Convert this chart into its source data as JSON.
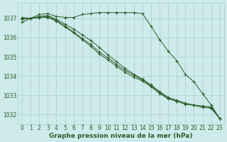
{
  "x": [
    0,
    1,
    2,
    3,
    4,
    5,
    6,
    7,
    8,
    9,
    10,
    11,
    12,
    13,
    14,
    15,
    16,
    17,
    18,
    19,
    20,
    21,
    22,
    23
  ],
  "line1": [
    1036.8,
    1037.0,
    1037.2,
    1037.25,
    1037.1,
    1037.05,
    1037.05,
    1037.2,
    1037.25,
    1037.3,
    1037.3,
    1037.3,
    1037.3,
    1037.3,
    1037.25,
    1036.6,
    1035.9,
    1035.3,
    1034.8,
    1034.1,
    1033.7,
    1033.1,
    1032.5,
    1031.8
  ],
  "line2": [
    1036.95,
    1037.0,
    1037.1,
    1037.15,
    1036.95,
    1036.7,
    1036.45,
    1036.15,
    1035.85,
    1035.5,
    1035.1,
    1034.75,
    1034.4,
    1034.1,
    1033.85,
    1033.55,
    1033.2,
    1032.9,
    1032.75,
    1032.6,
    1032.5,
    1032.45,
    1032.4,
    1031.8
  ],
  "line3": [
    1037.0,
    1037.0,
    1037.05,
    1037.1,
    1036.9,
    1036.6,
    1036.3,
    1035.95,
    1035.65,
    1035.25,
    1034.95,
    1034.6,
    1034.3,
    1034.05,
    1033.8,
    1033.5,
    1033.15,
    1032.85,
    1032.7,
    1032.55,
    1032.5,
    1032.4,
    1032.35,
    1031.8
  ],
  "line4": [
    1037.05,
    1037.0,
    1037.05,
    1037.05,
    1036.85,
    1036.55,
    1036.25,
    1035.9,
    1035.55,
    1035.15,
    1034.85,
    1034.5,
    1034.2,
    1033.95,
    1033.75,
    1033.45,
    1033.1,
    1032.82,
    1032.7,
    1032.55,
    1032.48,
    1032.4,
    1032.33,
    1031.8
  ],
  "bg_color": "#ceeaea",
  "grid_color": "#aacece",
  "line_color": "#2a5e2a",
  "marker": "+",
  "xlabel": "Graphe pression niveau de la mer (hPa)",
  "ylim": [
    1031.5,
    1037.8
  ],
  "yticks": [
    1032,
    1033,
    1034,
    1035,
    1036,
    1037
  ],
  "xticks": [
    0,
    1,
    2,
    3,
    4,
    5,
    6,
    7,
    8,
    9,
    10,
    11,
    12,
    13,
    14,
    15,
    16,
    17,
    18,
    19,
    20,
    21,
    22,
    23
  ],
  "xlabel_fontsize": 6.5,
  "tick_fontsize": 5.5
}
